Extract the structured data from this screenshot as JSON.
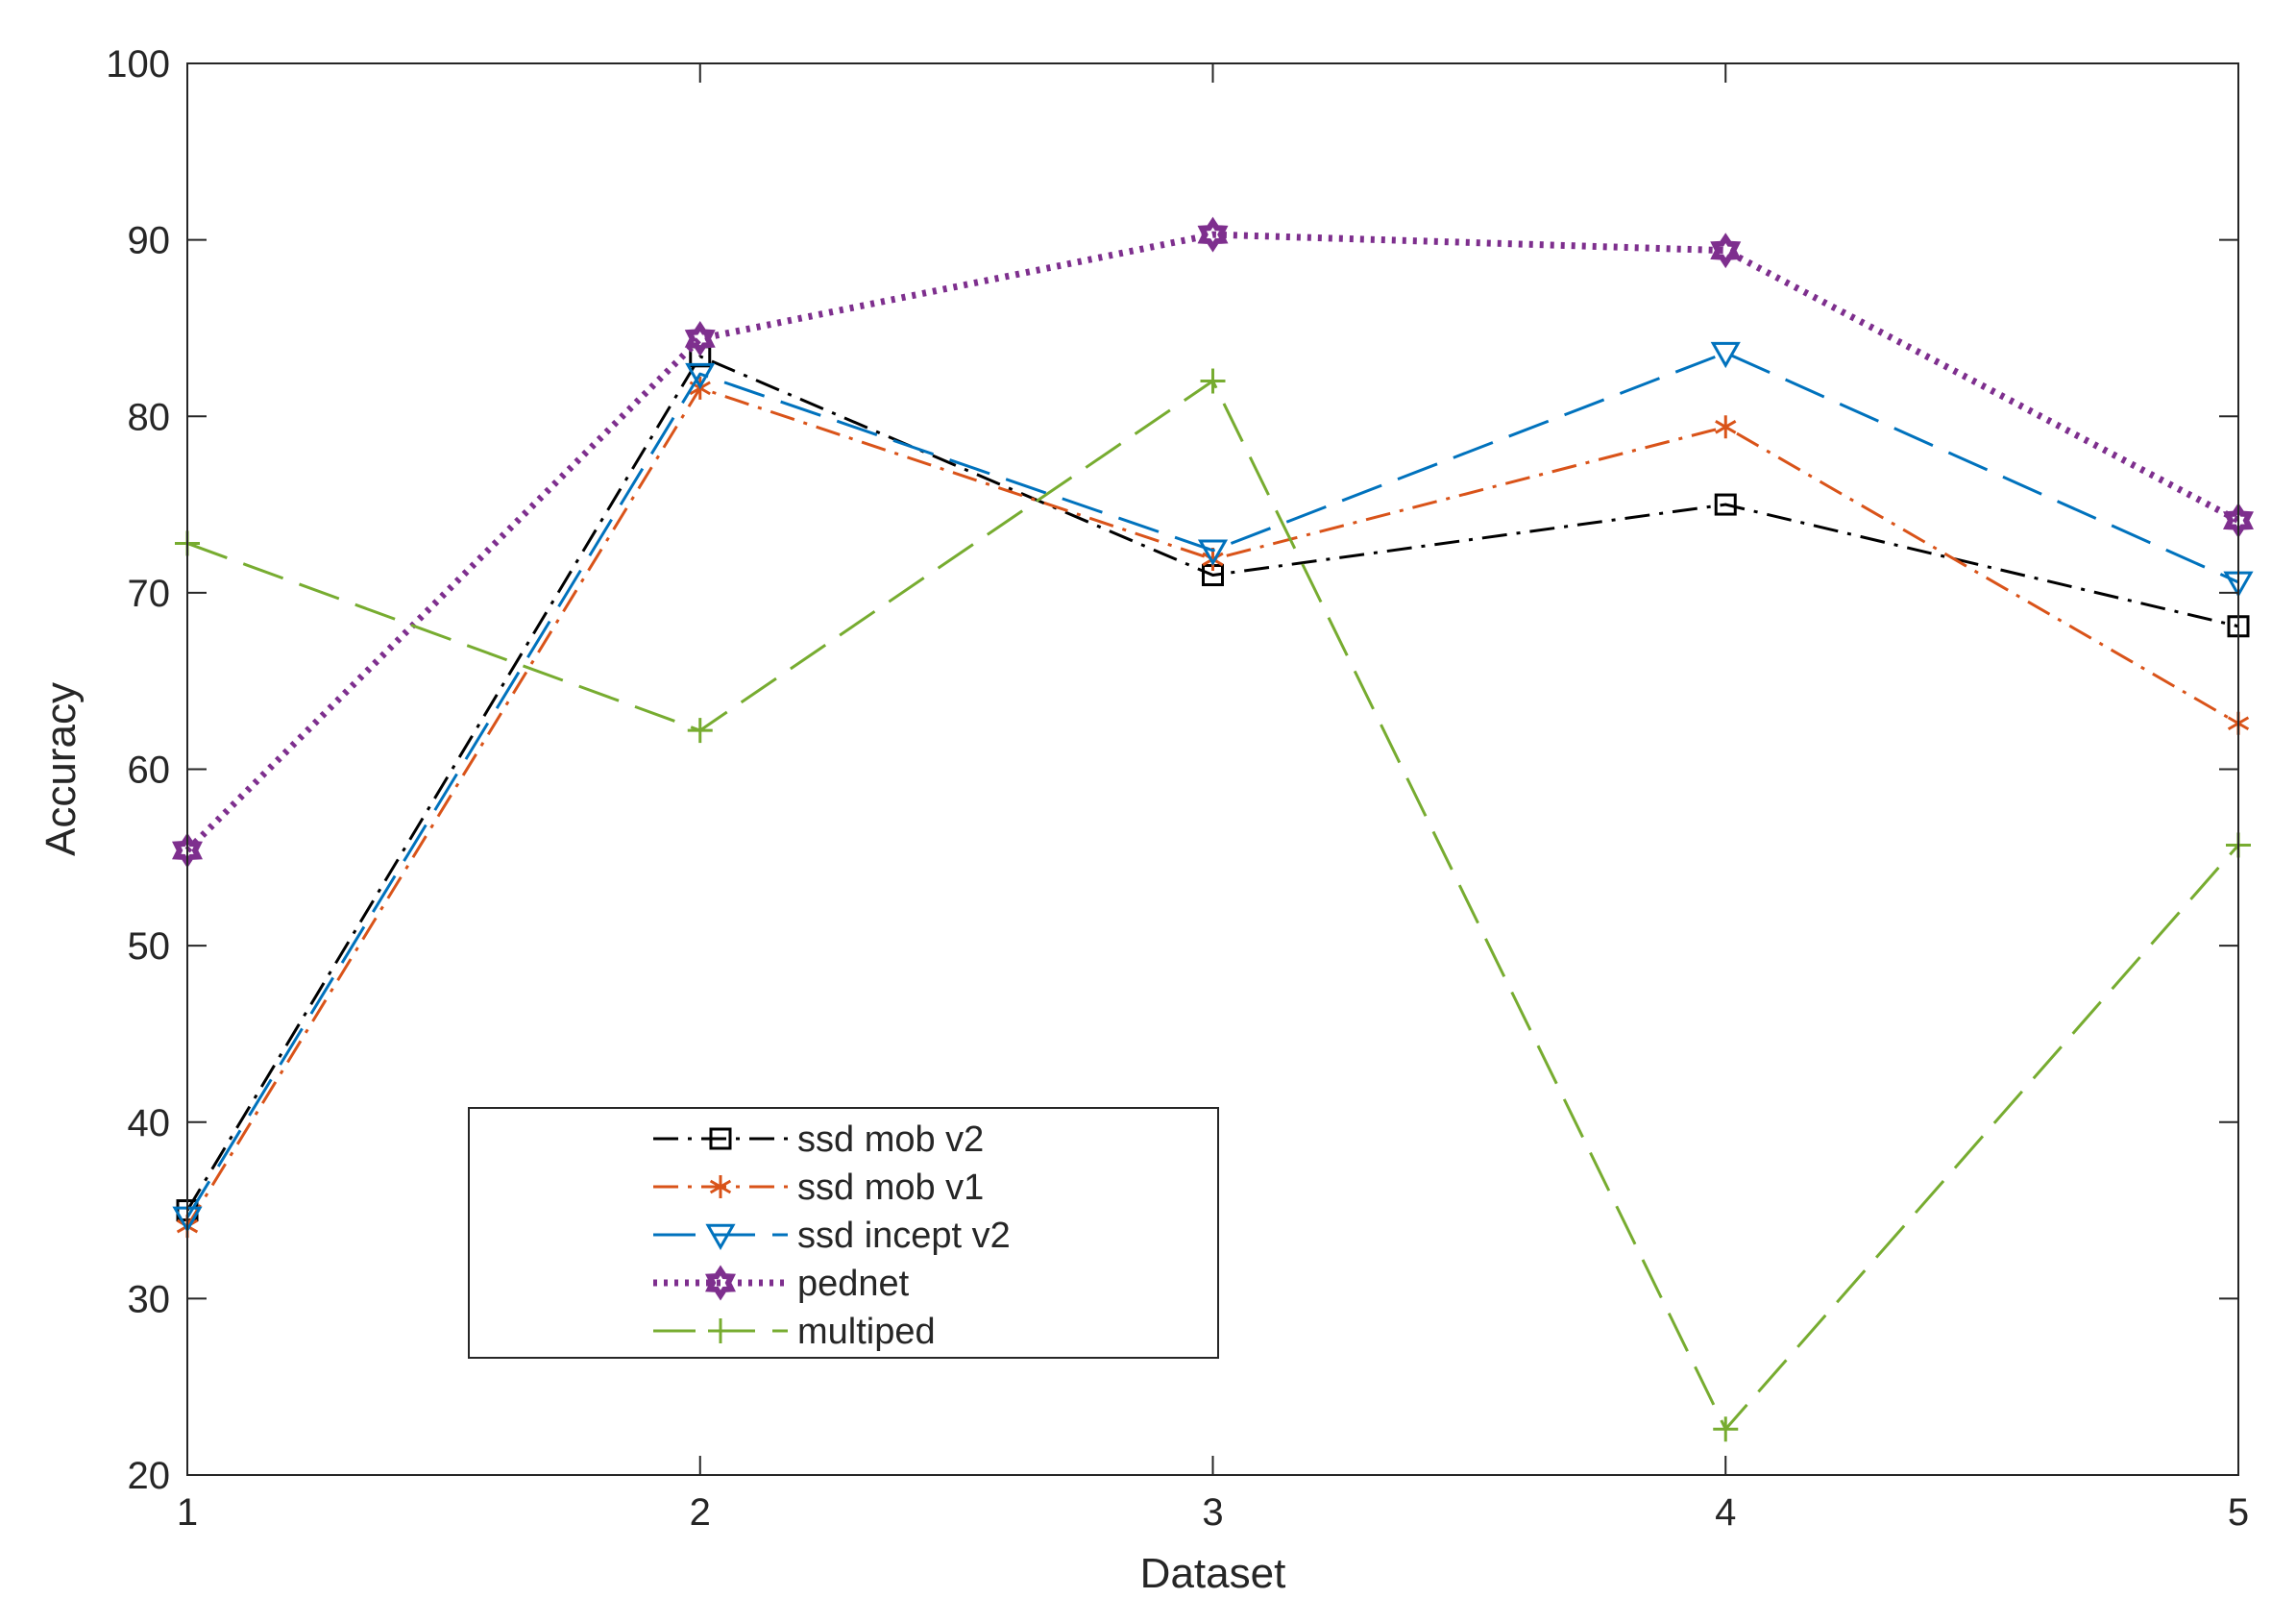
{
  "chart_data": {
    "type": "line",
    "title": "",
    "xlabel": "Dataset",
    "ylabel": "Accuracy",
    "xlim": [
      1,
      5
    ],
    "ylim": [
      20,
      100
    ],
    "x": [
      1,
      2,
      3,
      4,
      5
    ],
    "xticks": [
      "1",
      "2",
      "3",
      "4",
      "5"
    ],
    "yticks": [
      "20",
      "30",
      "40",
      "50",
      "60",
      "70",
      "80",
      "90",
      "100"
    ],
    "grid": false,
    "legend_position": "bottom-left",
    "series": [
      {
        "name": "ssd mob v2",
        "values": [
          35.0,
          83.4,
          71.0,
          75.0,
          68.1
        ],
        "color": "#000000",
        "dash": "dashdot",
        "marker": "square"
      },
      {
        "name": "ssd mob v1",
        "values": [
          34.1,
          81.6,
          71.9,
          79.4,
          62.6
        ],
        "color": "#D95319",
        "dash": "dashdot",
        "marker": "asterisk"
      },
      {
        "name": "ssd incept v2",
        "values": [
          34.6,
          82.4,
          72.4,
          83.6,
          70.6
        ],
        "color": "#0072BD",
        "dash": "dashed",
        "marker": "triangle-down"
      },
      {
        "name": "pednet",
        "values": [
          55.4,
          84.4,
          90.3,
          89.4,
          74.1
        ],
        "color": "#7E2F8E",
        "dash": "dotted",
        "marker": "hexagram"
      },
      {
        "name": "multiped",
        "values": [
          72.8,
          62.2,
          82.0,
          22.6,
          55.7
        ],
        "color": "#77AC30",
        "dash": "dashed",
        "marker": "plus"
      }
    ]
  }
}
